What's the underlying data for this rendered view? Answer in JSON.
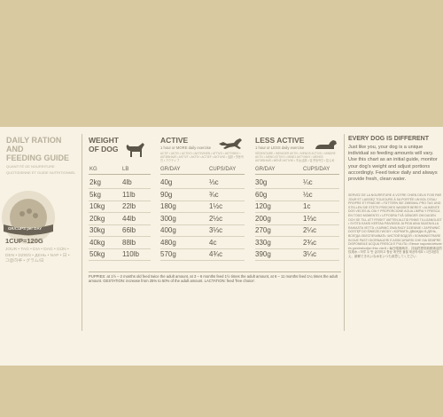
{
  "guide": {
    "title_line1": "DAILY RATION AND",
    "title_line2": "FEEDING GUIDE",
    "sub_line1": "QUANTITÉ DE NOURRITURE",
    "sub_line2": "QUOTIDIENNE ET GUIDE NUTRITIONNEL"
  },
  "cup": {
    "bowl_text": "GR/CUPS per DAY",
    "measure": "1CUP=120G"
  },
  "languages_text": "JOUR • TAG • DIA • DAG • GÜN • DEN • DZIEŃ • ДЕНЬ • NAP • 日 • 그램/하루 • グラム/日",
  "headers": {
    "weight_line1": "WEIGHT",
    "weight_line2": "OF DOG",
    "active": "ACTIVE",
    "active_sub": "1 hour or MORE daily exercise",
    "active_langs": "ACTIF • AKTIV • ACTIVO • AKTIIVINEN • ATTIVO • AKTYWNY • АКТИВНЫЙ • AKTIVT • AKTÍV • ACTIEF • AKTIVNÍ • 活跃 • 활동적인 • アクティブ",
    "less": "LESS ACTIVE",
    "less_sub": "1 hour or LESS daily exercise",
    "less_langs": "SÉDENTAIRE • WENIGER AKTIV • MENOS ACTIVO • MINDRE AKTIV • MENO ATTIVO • MNIEJ AKTYWNY • МЕНЕЕ АКТИВНЫЙ • MÉNĚ AKTIVNÍ • 不太活跃 • 덜 활동적인 • 控えめ"
  },
  "table": {
    "columns": [
      "KG",
      "LB",
      "GR/DAY",
      "CUPS/DAY",
      "GR/DAY",
      "CUPS/DAY"
    ],
    "rows": [
      [
        "2kg",
        "4lb",
        "40g",
        "⅓c",
        "30g",
        "¼c"
      ],
      [
        "5kg",
        "11lb",
        "90g",
        "¾c",
        "60g",
        "½c"
      ],
      [
        "10kg",
        "22lb",
        "180g",
        "1½c",
        "120g",
        "1c"
      ],
      [
        "20kg",
        "44lb",
        "300g",
        "2½c",
        "200g",
        "1⅔c"
      ],
      [
        "30kg",
        "66lb",
        "400g",
        "3⅓c",
        "270g",
        "2¼c"
      ],
      [
        "40kg",
        "88lb",
        "480g",
        "4c",
        "330g",
        "2¾c"
      ],
      [
        "50kg",
        "110lb",
        "570g",
        "4¾c",
        "390g",
        "3¼c"
      ]
    ]
  },
  "footnote": "PUPPIES: at 1½ – 2 months old feed twice the adult amount, at 3 – 6 months feed 1½ times the adult amount, at 6 – 11 months feed 1¼ times the adult amount. GESTATION: increase from 25% to 50% of the adult amount. LACTATION: feed 'free choice'.",
  "right": {
    "title": "EVERY DOG IS DIFFERENT",
    "body": "Just like you, your dog is a unique individual so feeding amounts will vary. Use this chart as an initial guide, monitor your dog's weight and adjust portions accordingly. Feed twice daily and always provide fresh, clean water.",
    "langs": "SERVEZ DE LA NOURRITURE À VOTRE CHIEN DEUX FOIS PAR JOUR ET LAISSEZ TOUJOURS À SA PORTÉE UN BOL D'EAU PROPRE ET FRAÎCHE • FÜTTERN SIE ZWEIMAL PRO TAG UND STELLEN SIE STETS FRISCHES WASSER BEREIT • ALIMENTE DOS VECES AL DÍA Y PROPORCIONE AGUA LIMPIA Y FRESCA EN TODO MOMENTO • UTFODRA TVÅ GÅNGER OM DAGEN OCH SE TILL ATT FRISKT VATTEN ALLTID FINNS TILLGÄNGLIGT • SYÖTÄ KAKSI KERTAA PÄIVÄSSÄ JA PIDÄ AINA SAATAVILLA RAIKASTA VETTÄ • KARMIĆ DWA RAZY DZIENNIE I ZAPEWNIĆ DOSTĘP DO ŚWIEŻEJ WODY • КОРМИТЬ ДВАЖДЫ В ДЕНЬ, ВСЕГДА ОБЕСПЕЧИВАТЬ ЧИСТОЙ ВОДОЙ • SOMMINISTRARE IN DUE PASTI GIORNALIERI E ASSICURARSI CHE SIA SEMPRE DISPONIBILE ACQUA FRESCA E PULITA • Etesse naponta kétszer és gondoskodjon friss vízről • 每日喂食两次，并始终提供新鲜清洁的饮用水 • 하루 두 번 급여하고 항상 깨끗한 물을 제공하세요 • 1日2回与え、新鮮できれいな水をいつも用意してください"
  },
  "colors": {
    "background": "#d9c9a0",
    "label": "#f7f2e4",
    "text": "#5b5448",
    "muted": "#b8b09c"
  }
}
